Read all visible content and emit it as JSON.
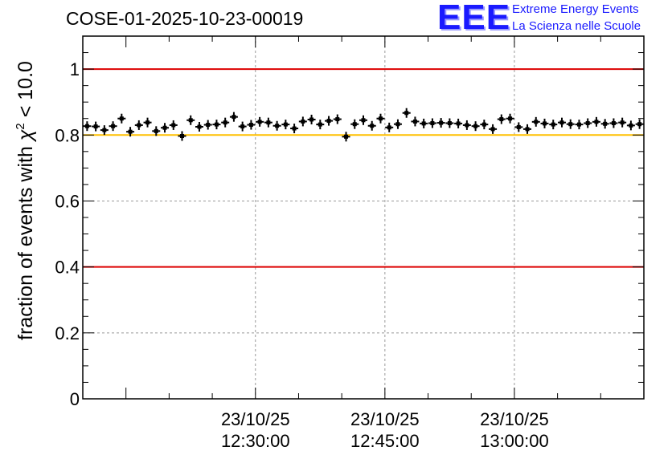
{
  "header": {
    "title": "COSE-01-2025-10-23-00019",
    "logo_mark": "EEE",
    "logo_line1": "Extreme Energy Events",
    "logo_line2": "La Scienza nelle Scuole"
  },
  "colors": {
    "threshold_red": "#dd0000",
    "threshold_yellow": "#ffc000",
    "logo_blue": "#1a1aff",
    "marker": "#000000",
    "grid": "#999999"
  },
  "chart_data": {
    "type": "scatter",
    "title": "COSE-01-2025-10-23-00019",
    "ylabel_main": "fraction of events with ",
    "ylabel_chi": "χ",
    "ylabel_sup": "2",
    "ylabel_tail": " < 10.0",
    "xlabel": "",
    "ylim": [
      0,
      1.1
    ],
    "xlim": [
      "23/10/25 12:10:00",
      "23/10/25 13:15:00"
    ],
    "grid": true,
    "yticks": [
      {
        "value": 0,
        "label": "0"
      },
      {
        "value": 0.2,
        "label": "0.2"
      },
      {
        "value": 0.4,
        "label": "0.4"
      },
      {
        "value": 0.6,
        "label": "0.6"
      },
      {
        "value": 0.8,
        "label": "0.8"
      },
      {
        "value": 1,
        "label": "1"
      }
    ],
    "xticks": [
      {
        "value": "23/10/25 12:30:00",
        "date": "23/10/25",
        "time": "12:30:00"
      },
      {
        "value": "23/10/25 12:45:00",
        "date": "23/10/25",
        "time": "12:45:00"
      },
      {
        "value": "23/10/25 13:00:00",
        "date": "23/10/25",
        "time": "13:00:00"
      }
    ],
    "reference_lines": [
      {
        "y": 1.0,
        "color": "red"
      },
      {
        "y": 0.8,
        "color": "yellow"
      },
      {
        "y": 0.4,
        "color": "red"
      }
    ],
    "series": [
      {
        "x": [
          "12:10:30",
          "12:11:30",
          "12:12:30",
          "12:13:30",
          "12:14:30",
          "12:15:30",
          "12:16:30",
          "12:17:30",
          "12:18:30",
          "12:19:30",
          "12:20:30",
          "12:21:30",
          "12:22:30",
          "12:23:30",
          "12:24:30",
          "12:25:30",
          "12:26:30",
          "12:27:30",
          "12:28:30",
          "12:29:30",
          "12:30:30",
          "12:31:30",
          "12:32:30",
          "12:33:30",
          "12:34:30",
          "12:35:30",
          "12:36:30",
          "12:37:30",
          "12:38:30",
          "12:39:30",
          "12:40:30",
          "12:41:30",
          "12:42:30",
          "12:43:30",
          "12:44:30",
          "12:45:30",
          "12:46:30",
          "12:47:30",
          "12:48:30",
          "12:49:30",
          "12:50:30",
          "12:51:30",
          "12:52:30",
          "12:53:30",
          "12:54:30",
          "12:55:30",
          "12:56:30",
          "12:57:30",
          "12:58:30",
          "12:59:30",
          "13:00:30",
          "13:01:30",
          "13:02:30",
          "13:03:30",
          "13:04:30",
          "13:05:30",
          "13:06:30",
          "13:07:30",
          "13:08:30",
          "13:09:30",
          "13:10:30",
          "13:11:30",
          "13:12:30",
          "13:13:30",
          "13:14:30"
        ],
        "y": [
          0.827,
          0.826,
          0.815,
          0.827,
          0.85,
          0.81,
          0.83,
          0.838,
          0.812,
          0.822,
          0.83,
          0.797,
          0.845,
          0.825,
          0.831,
          0.832,
          0.838,
          0.855,
          0.826,
          0.831,
          0.84,
          0.838,
          0.828,
          0.832,
          0.82,
          0.841,
          0.847,
          0.832,
          0.843,
          0.848,
          0.795,
          0.833,
          0.845,
          0.828,
          0.85,
          0.823,
          0.833,
          0.867,
          0.841,
          0.835,
          0.836,
          0.837,
          0.836,
          0.835,
          0.83,
          0.827,
          0.832,
          0.818,
          0.848,
          0.85,
          0.824,
          0.818,
          0.84,
          0.835,
          0.832,
          0.838,
          0.833,
          0.832,
          0.836,
          0.84,
          0.834,
          0.836,
          0.838,
          0.829,
          0.833
        ]
      }
    ]
  }
}
